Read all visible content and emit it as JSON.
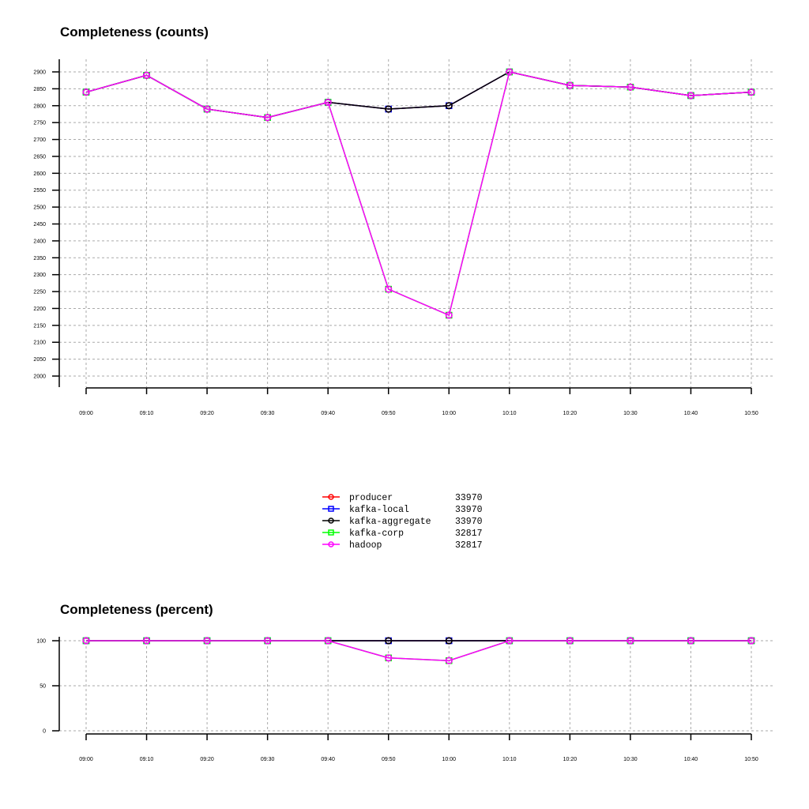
{
  "chart_data": [
    {
      "type": "line",
      "title": "Completeness (counts)",
      "categories": [
        "09:00",
        "09:10",
        "09:20",
        "09:30",
        "09:40",
        "09:50",
        "10:00",
        "10:10",
        "10:20",
        "10:30",
        "10:40",
        "10:50"
      ],
      "ylim": [
        2000,
        2900
      ],
      "yticks": [
        2000,
        2050,
        2100,
        2150,
        2200,
        2250,
        2300,
        2350,
        2400,
        2450,
        2500,
        2550,
        2600,
        2650,
        2700,
        2750,
        2800,
        2850,
        2900
      ],
      "grid": true,
      "series": [
        {
          "name": "producer",
          "color": "#ff0000",
          "marker": "circle",
          "values": [
            2840,
            2890,
            2790,
            2765,
            2810,
            2790,
            2800,
            2900,
            2860,
            2855,
            2830,
            2840
          ]
        },
        {
          "name": "kafka-local",
          "color": "#0000ff",
          "marker": "square",
          "values": [
            2840,
            2890,
            2790,
            2765,
            2810,
            2790,
            2800,
            2900,
            2860,
            2855,
            2830,
            2840
          ]
        },
        {
          "name": "kafka-aggregate",
          "color": "#000000",
          "marker": "circle",
          "values": [
            2840,
            2890,
            2790,
            2765,
            2810,
            2790,
            2800,
            2900,
            2860,
            2855,
            2830,
            2840
          ]
        },
        {
          "name": "kafka-corp",
          "color": "#00ff00",
          "marker": "square",
          "values": [
            2840,
            2890,
            2790,
            2765,
            2810,
            2257,
            2180,
            2900,
            2860,
            2855,
            2830,
            2840
          ]
        },
        {
          "name": "hadoop",
          "color": "#ff00ff",
          "marker": "circle",
          "values": [
            2840,
            2890,
            2790,
            2765,
            2810,
            2257,
            2180,
            2900,
            2860,
            2855,
            2830,
            2840
          ]
        }
      ]
    },
    {
      "type": "line",
      "title": "Completeness (percent)",
      "categories": [
        "09:00",
        "09:10",
        "09:20",
        "09:30",
        "09:40",
        "09:50",
        "10:00",
        "10:10",
        "10:20",
        "10:30",
        "10:40",
        "10:50"
      ],
      "ylim": [
        0,
        100
      ],
      "yticks": [
        0,
        50,
        100
      ],
      "grid": true,
      "series": [
        {
          "name": "producer",
          "color": "#ff0000",
          "marker": "circle",
          "values": [
            100,
            100,
            100,
            100,
            100,
            100,
            100,
            100,
            100,
            100,
            100,
            100
          ]
        },
        {
          "name": "kafka-local",
          "color": "#0000ff",
          "marker": "square",
          "values": [
            100,
            100,
            100,
            100,
            100,
            100,
            100,
            100,
            100,
            100,
            100,
            100
          ]
        },
        {
          "name": "kafka-aggregate",
          "color": "#000000",
          "marker": "circle",
          "values": [
            100,
            100,
            100,
            100,
            100,
            100,
            100,
            100,
            100,
            100,
            100,
            100
          ]
        },
        {
          "name": "kafka-corp",
          "color": "#00ff00",
          "marker": "square",
          "values": [
            100,
            100,
            100,
            100,
            100,
            80.9,
            77.9,
            100,
            100,
            100,
            100,
            100
          ]
        },
        {
          "name": "hadoop",
          "color": "#ff00ff",
          "marker": "circle",
          "values": [
            100,
            100,
            100,
            100,
            100,
            80.9,
            77.9,
            100,
            100,
            100,
            100,
            100
          ]
        }
      ]
    }
  ],
  "legend": {
    "placement": "center",
    "entries": [
      {
        "name": "producer",
        "total": "33970",
        "color": "#ff0000",
        "marker": "circle"
      },
      {
        "name": "kafka-local",
        "total": "33970",
        "color": "#0000ff",
        "marker": "square"
      },
      {
        "name": "kafka-aggregate",
        "total": "33970",
        "color": "#000000",
        "marker": "circle"
      },
      {
        "name": "kafka-corp",
        "total": "32817",
        "color": "#00ff00",
        "marker": "square"
      },
      {
        "name": "hadoop",
        "total": "32817",
        "color": "#ff00ff",
        "marker": "circle"
      }
    ]
  }
}
